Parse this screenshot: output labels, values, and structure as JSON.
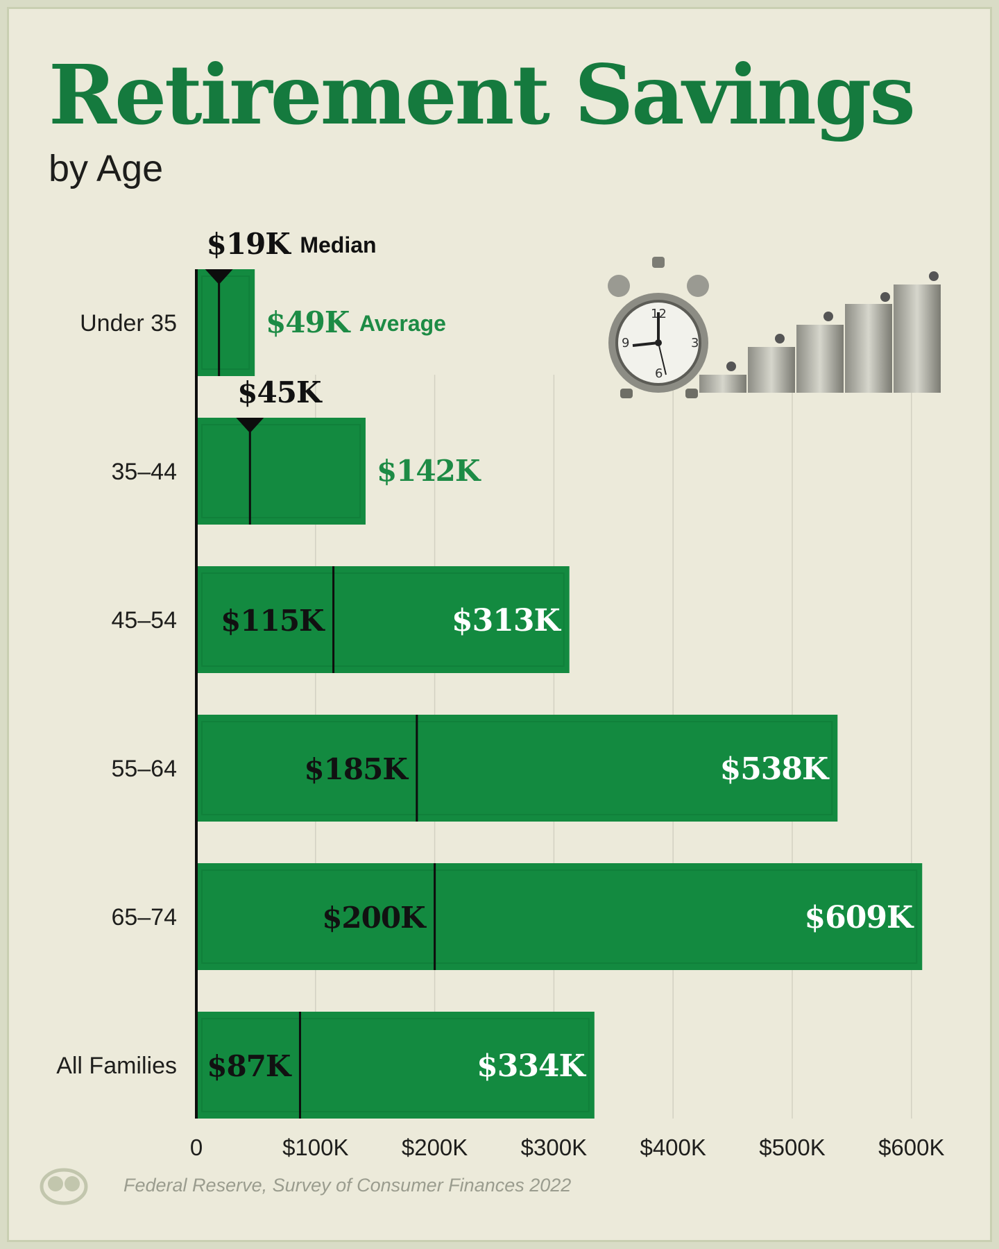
{
  "title": "Retirement Savings",
  "subtitle": "by Age",
  "source": "Federal Reserve, Survey of Consumer Finances 2022",
  "colors": {
    "bar": "#138a40",
    "title": "#157a3e",
    "average_label": "#1d8b45"
  },
  "icons": [
    "alarm-clock-icon",
    "coin-stacks-icon",
    "logo-icon"
  ],
  "chart_data": {
    "type": "bar",
    "orientation": "horizontal",
    "categories": [
      "Under 35",
      "35–44",
      "45–54",
      "55–64",
      "65–74",
      "All Families"
    ],
    "series": [
      {
        "name": "Average",
        "values": [
          49,
          142,
          313,
          538,
          609,
          334
        ]
      },
      {
        "name": "Median",
        "values": [
          19,
          45,
          115,
          185,
          200,
          87
        ]
      }
    ],
    "value_labels": {
      "average": [
        "$49K",
        "$142K",
        "$313K",
        "$538K",
        "$609K",
        "$334K"
      ],
      "median": [
        "$19K",
        "$45K",
        "$115K",
        "$185K",
        "$200K",
        "$87K"
      ]
    },
    "unit": "$K",
    "xlim": [
      0,
      600
    ],
    "x_ticks": [
      0,
      100,
      200,
      300,
      400,
      500,
      600
    ],
    "x_tick_labels": [
      "0",
      "$100K",
      "$200K",
      "$300K",
      "$400K",
      "$500K",
      "$600K"
    ],
    "annotations": {
      "median": "Median",
      "average": "Average"
    },
    "grid": true
  }
}
